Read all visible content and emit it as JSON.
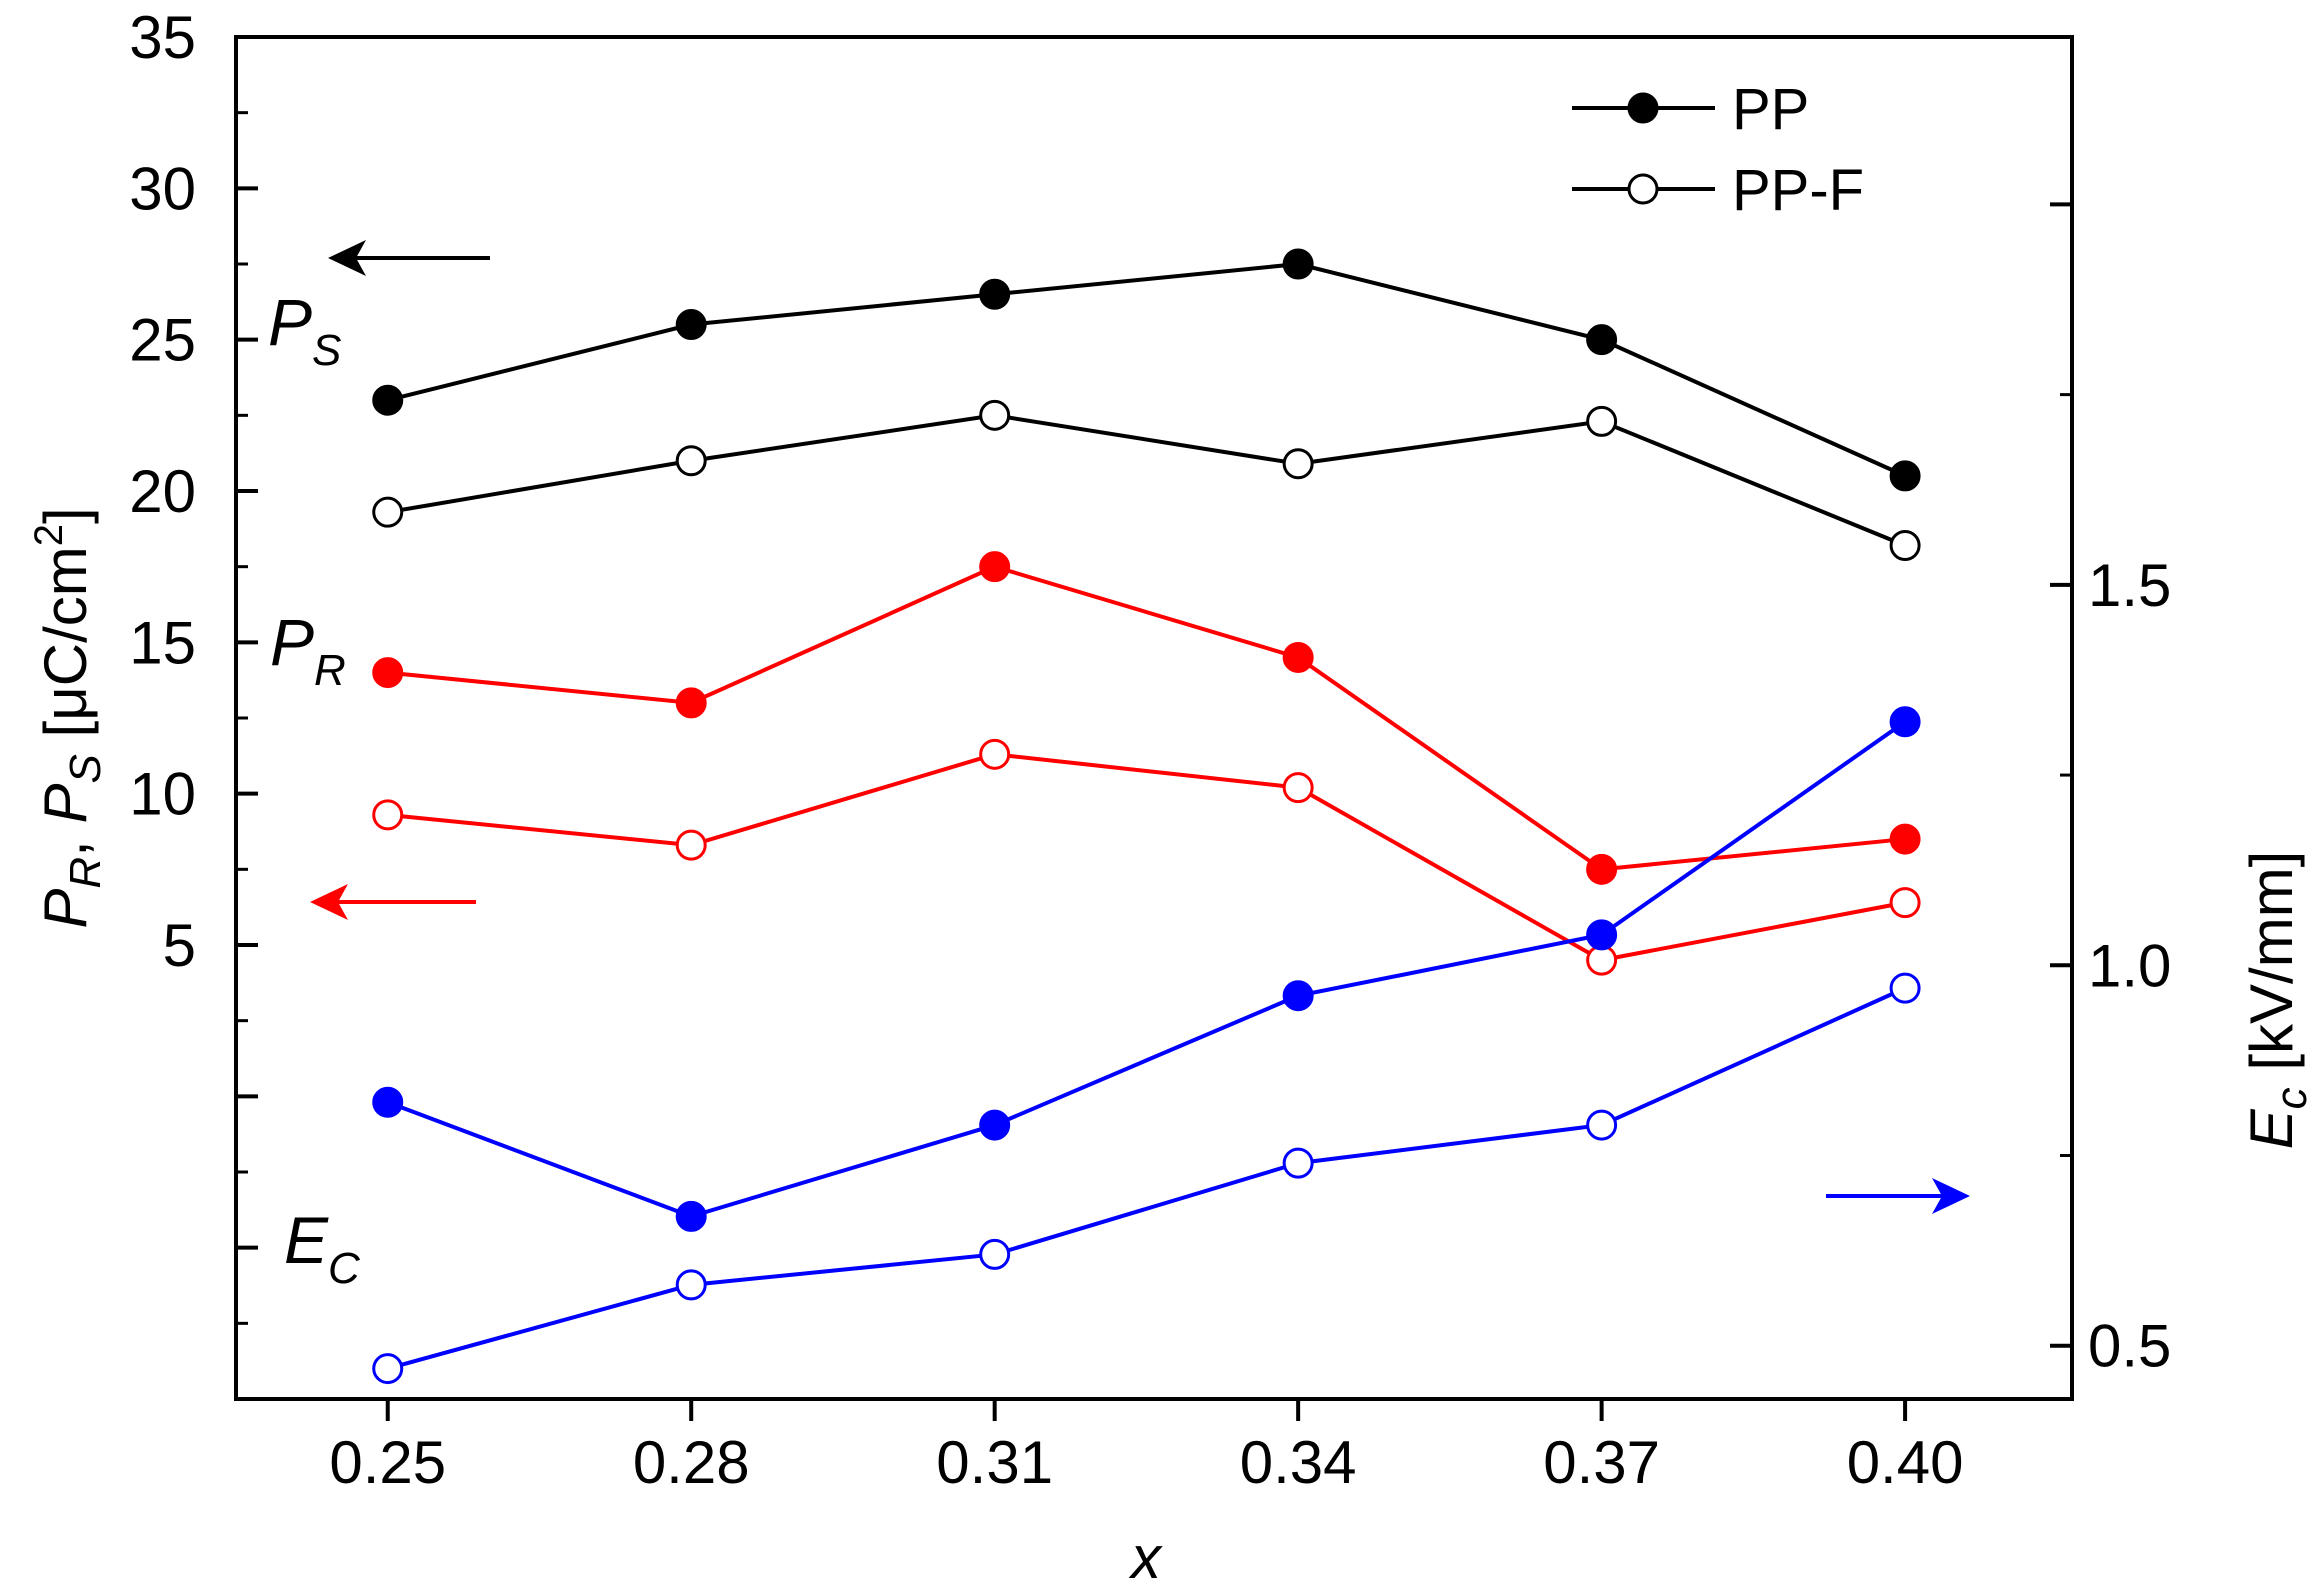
{
  "chart_data": {
    "type": "line",
    "x": [
      0.25,
      0.28,
      0.31,
      0.34,
      0.37,
      0.4
    ],
    "x_tick_labels": [
      "0.25",
      "0.28",
      "0.31",
      "0.34",
      "0.37",
      "0.40"
    ],
    "xlim": [
      0.235,
      0.4165
    ],
    "xlabel": "x",
    "left_axis": {
      "ylim": [
        -10,
        35
      ],
      "ticks": [
        5,
        10,
        15,
        20,
        25,
        30,
        35
      ],
      "tick_labels": [
        "5",
        "10",
        "15",
        "20",
        "25",
        "30",
        "35"
      ],
      "label_parts": {
        "p1": "P",
        "s1": "R",
        "comma": ", ",
        "p2": "P",
        "s2": "S",
        "unit_open": " [μC/cm",
        "unit_sup": "2",
        "unit_close": "]"
      }
    },
    "right_axis": {
      "ylim": [
        0.43,
        2.22
      ],
      "ticks": [
        0.5,
        1.0,
        1.5
      ],
      "tick_labels": [
        "0.5",
        "1.0",
        "1.5"
      ],
      "label_parts": {
        "main": "E",
        "sub": "c",
        "unit": " [kV/mm]"
      }
    },
    "series": [
      {
        "name": "PS PP",
        "group": "PS",
        "variant": "PP",
        "axis": "left",
        "color": "#000000",
        "filled": true,
        "values": [
          23.0,
          25.5,
          26.5,
          27.5,
          25.0,
          20.5
        ]
      },
      {
        "name": "PS PP-F",
        "group": "PS",
        "variant": "PP-F",
        "axis": "left",
        "color": "#000000",
        "filled": false,
        "values": [
          19.3,
          21.0,
          22.5,
          20.9,
          22.3,
          18.2
        ]
      },
      {
        "name": "PR PP",
        "group": "PR",
        "variant": "PP",
        "axis": "left",
        "color": "#ff0000",
        "filled": true,
        "values": [
          14.0,
          13.0,
          17.5,
          14.5,
          7.5,
          8.5
        ]
      },
      {
        "name": "PR PP-F",
        "group": "PR",
        "variant": "PP-F",
        "axis": "left",
        "color": "#ff0000",
        "filled": false,
        "values": [
          9.3,
          8.3,
          11.3,
          10.2,
          4.5,
          6.4
        ]
      },
      {
        "name": "Ec PP",
        "group": "Ec",
        "variant": "PP",
        "axis": "right",
        "color": "#0000ff",
        "filled": true,
        "values": [
          0.82,
          0.67,
          0.79,
          0.96,
          1.04,
          1.32
        ]
      },
      {
        "name": "Ec PP-F",
        "group": "Ec",
        "variant": "PP-F",
        "axis": "right",
        "color": "#0000ff",
        "filled": false,
        "values": [
          0.47,
          0.58,
          0.62,
          0.74,
          0.79,
          0.97
        ]
      }
    ],
    "legend": {
      "position": "top-right",
      "entries": [
        {
          "label": "PP",
          "filled": true
        },
        {
          "label": "PP-F",
          "filled": false
        }
      ]
    },
    "annotations": {
      "ps": {
        "main": "P",
        "sub": "S",
        "color": "#000000"
      },
      "pr": {
        "main": "P",
        "sub": "R",
        "color": "#ff0000"
      },
      "ec": {
        "main": "E",
        "sub": "C",
        "color": "#0000ff"
      }
    },
    "colors": {
      "ps": "#000000",
      "pr": "#ff0000",
      "ec": "#0000ff",
      "axis": "#000000"
    }
  }
}
